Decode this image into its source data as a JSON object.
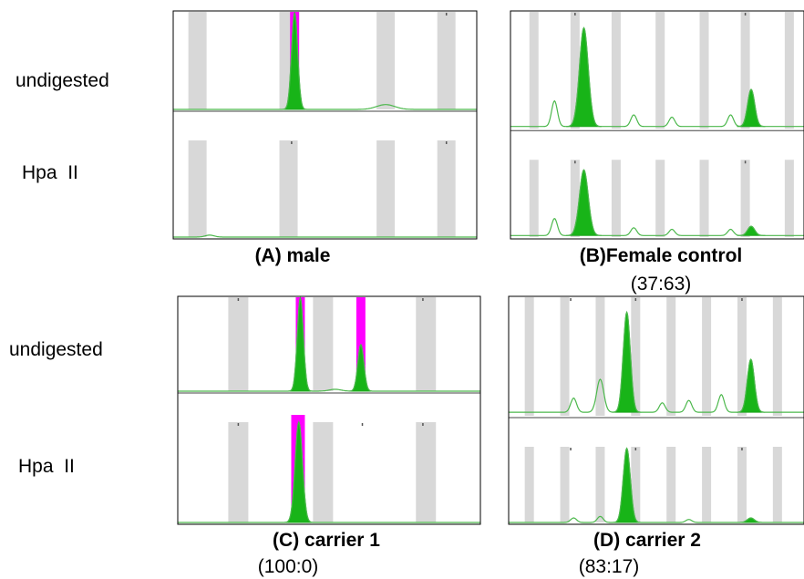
{
  "colors": {
    "peak_fill": "#18b418",
    "peak_line": "#1fa51f",
    "trace_line": "#4cb84c",
    "highlight": "#ff00ff",
    "bin_band": "#d8d8d8",
    "frame": "#000000"
  },
  "row_labels": [
    "undigested",
    "Hpa  II"
  ],
  "chart_data": [
    {
      "type": "electropherogram",
      "caption": "(A) male",
      "ratio": "",
      "x_range": [
        0,
        100
      ],
      "y_range": [
        0,
        1
      ],
      "bins": [
        8,
        38,
        70,
        90
      ],
      "tick_marks": [
        39,
        90
      ],
      "traces": [
        {
          "condition": "undigested",
          "baseline": 0.0,
          "highlight": [
            [
              38.5,
              41.5
            ]
          ],
          "peaks": [
            {
              "x": 40,
              "height": 1.0,
              "width": 1.0,
              "filled": true
            },
            {
              "x": 70,
              "height": 0.05,
              "width": 3.0,
              "filled": false
            }
          ]
        },
        {
          "condition": "Hpa  II",
          "baseline": 0.0,
          "highlight": [],
          "peaks": [
            {
              "x": 12,
              "height": 0.02,
              "width": 1.5,
              "filled": false
            }
          ]
        }
      ]
    },
    {
      "type": "electropherogram",
      "caption": "(B)Female control",
      "ratio": "(37:63)",
      "x_range": [
        0,
        100
      ],
      "y_range": [
        0,
        1
      ],
      "bins": [
        8,
        22,
        36,
        51,
        66,
        80,
        95
      ],
      "tick_marks": [
        22,
        80
      ],
      "traces": [
        {
          "condition": "undigested",
          "baseline": 0.02,
          "highlight": [],
          "peaks": [
            {
              "x": 15,
              "height": 0.22,
              "width": 1.0,
              "filled": false
            },
            {
              "x": 25,
              "height": 0.85,
              "width": 1.5,
              "filled": true
            },
            {
              "x": 42,
              "height": 0.1,
              "width": 1.0,
              "filled": false
            },
            {
              "x": 55,
              "height": 0.08,
              "width": 1.0,
              "filled": false
            },
            {
              "x": 75,
              "height": 0.1,
              "width": 1.0,
              "filled": false
            },
            {
              "x": 82,
              "height": 0.32,
              "width": 1.2,
              "filled": true
            }
          ]
        },
        {
          "condition": "Hpa  II",
          "baseline": 0.02,
          "highlight": [],
          "peaks": [
            {
              "x": 15,
              "height": 0.22,
              "width": 1.0,
              "filled": false
            },
            {
              "x": 25,
              "height": 0.85,
              "width": 1.5,
              "filled": true
            },
            {
              "x": 42,
              "height": 0.1,
              "width": 1.0,
              "filled": false
            },
            {
              "x": 55,
              "height": 0.08,
              "width": 1.0,
              "filled": false
            },
            {
              "x": 75,
              "height": 0.08,
              "width": 1.0,
              "filled": false
            },
            {
              "x": 82,
              "height": 0.12,
              "width": 1.2,
              "filled": true
            }
          ]
        }
      ]
    },
    {
      "type": "electropherogram",
      "caption": "(C) carrier 1",
      "ratio": "(100:0)",
      "x_range": [
        0,
        100
      ],
      "y_range": [
        0,
        1
      ],
      "bins": [
        20,
        48,
        82
      ],
      "tick_marks": [
        20,
        41,
        61,
        81
      ],
      "traces": [
        {
          "condition": "undigested",
          "baseline": 0.0,
          "highlight": [
            [
              39,
              42
            ],
            [
              59,
              62
            ]
          ],
          "peaks": [
            {
              "x": 40.5,
              "height": 1.0,
              "width": 1.0,
              "filled": true
            },
            {
              "x": 60.5,
              "height": 0.5,
              "width": 1.0,
              "filled": true
            },
            {
              "x": 52,
              "height": 0.02,
              "width": 2.0,
              "filled": false
            }
          ]
        },
        {
          "condition": "Hpa  II",
          "baseline": 0.0,
          "highlight": [
            [
              37.5,
              42
            ]
          ],
          "peaks": [
            {
              "x": 40,
              "height": 1.0,
              "width": 1.2,
              "filled": true
            }
          ]
        }
      ]
    },
    {
      "type": "electropherogram",
      "caption": "(D) carrier 2",
      "ratio": "(83:17)",
      "x_range": [
        0,
        100
      ],
      "y_range": [
        0,
        1
      ],
      "bins": [
        7,
        19,
        31,
        43,
        55,
        67,
        79,
        91
      ],
      "tick_marks": [
        21,
        43,
        79
      ],
      "traces": [
        {
          "condition": "undigested",
          "baseline": 0.03,
          "highlight": [],
          "peaks": [
            {
              "x": 22,
              "height": 0.12,
              "width": 1.0,
              "filled": false
            },
            {
              "x": 31,
              "height": 0.28,
              "width": 1.2,
              "filled": false
            },
            {
              "x": 40,
              "height": 0.85,
              "width": 1.2,
              "filled": true
            },
            {
              "x": 52,
              "height": 0.08,
              "width": 1.0,
              "filled": false
            },
            {
              "x": 61,
              "height": 0.1,
              "width": 1.0,
              "filled": false
            },
            {
              "x": 72,
              "height": 0.15,
              "width": 1.0,
              "filled": false
            },
            {
              "x": 82,
              "height": 0.45,
              "width": 1.2,
              "filled": true
            }
          ]
        },
        {
          "condition": "Hpa  II",
          "baseline": 0.0,
          "highlight": [],
          "peaks": [
            {
              "x": 22,
              "height": 0.06,
              "width": 1.0,
              "filled": false
            },
            {
              "x": 31,
              "height": 0.08,
              "width": 1.0,
              "filled": false
            },
            {
              "x": 40,
              "height": 0.98,
              "width": 1.2,
              "filled": true
            },
            {
              "x": 61,
              "height": 0.04,
              "width": 1.0,
              "filled": false
            },
            {
              "x": 82,
              "height": 0.06,
              "width": 1.2,
              "filled": true
            }
          ]
        }
      ]
    }
  ]
}
